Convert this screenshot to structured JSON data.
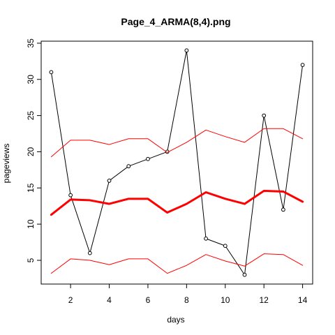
{
  "chart_data": {
    "type": "line",
    "title": "Page_4_ARMA(8,4).png",
    "xlabel": "days",
    "ylabel": "pageviews",
    "xlim": [
      0.48,
      14.52
    ],
    "ylim": [
      1.72,
      35.28
    ],
    "x_ticks": [
      2,
      4,
      6,
      8,
      10,
      12,
      14
    ],
    "y_ticks": [
      5,
      10,
      15,
      20,
      25,
      30,
      35
    ],
    "grid": false,
    "x": [
      1,
      2,
      3,
      4,
      5,
      6,
      7,
      8,
      9,
      10,
      11,
      12,
      13,
      14
    ],
    "series": [
      {
        "values": [
          31,
          14,
          6,
          16,
          18,
          19,
          20,
          34,
          8,
          7,
          3,
          25,
          12,
          32
        ],
        "color": "#000000",
        "style": "line-points"
      },
      {
        "values": [
          19.3,
          21.6,
          21.6,
          21.0,
          21.8,
          21.8,
          19.9,
          21.3,
          23.0,
          22.1,
          21.3,
          23.2,
          23.2,
          21.8
        ],
        "color": "#ff0000",
        "style": "line"
      },
      {
        "values": [
          11.3,
          13.4,
          13.3,
          12.8,
          13.5,
          13.5,
          11.6,
          12.8,
          14.4,
          13.5,
          12.8,
          14.6,
          14.5,
          13.1
        ],
        "color": "#ff0000",
        "style": "thick-line"
      },
      {
        "values": [
          3.2,
          5.2,
          5.0,
          4.4,
          5.2,
          5.2,
          3.2,
          4.3,
          5.8,
          4.9,
          4.2,
          5.9,
          5.8,
          4.3
        ],
        "color": "#ff0000",
        "style": "line"
      }
    ]
  }
}
